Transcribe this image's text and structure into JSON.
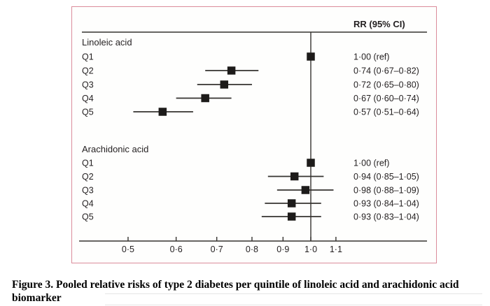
{
  "caption": "Figure 3. Pooled relative risks of type 2 diabetes per quintile of linoleic acid and arachidonic acid biomarker",
  "colors": {
    "frame": "#db8c9b",
    "ink": "#231f20"
  },
  "chart_data": {
    "type": "forest",
    "column_header": "RR (95% CI)",
    "x_axis": {
      "scale": "log",
      "ticks": [
        0.5,
        0.6,
        0.7,
        0.8,
        0.9,
        1.0,
        1.1
      ],
      "tick_labels": [
        "0·5",
        "0·6",
        "0·7",
        "0·8",
        "0·9",
        "1·0",
        "1·1"
      ],
      "reference_line": 1.0
    },
    "groups": [
      {
        "label": "Linoleic acid",
        "rows": [
          {
            "label": "Q1",
            "rr": 1.0,
            "lo": null,
            "hi": null,
            "text": "1·00 (ref)"
          },
          {
            "label": "Q2",
            "rr": 0.74,
            "lo": 0.67,
            "hi": 0.82,
            "text": "0·74 (0·67–0·82)"
          },
          {
            "label": "Q3",
            "rr": 0.72,
            "lo": 0.65,
            "hi": 0.8,
            "text": "0·72 (0·65–0·80)"
          },
          {
            "label": "Q4",
            "rr": 0.67,
            "lo": 0.6,
            "hi": 0.74,
            "text": "0·67 (0·60–0·74)"
          },
          {
            "label": "Q5",
            "rr": 0.57,
            "lo": 0.51,
            "hi": 0.64,
            "text": "0·57 (0·51–0·64)"
          }
        ]
      },
      {
        "label": "Arachidonic acid",
        "rows": [
          {
            "label": "Q1",
            "rr": 1.0,
            "lo": null,
            "hi": null,
            "text": "1·00 (ref)"
          },
          {
            "label": "Q2",
            "rr": 0.94,
            "lo": 0.85,
            "hi": 1.05,
            "text": "0·94 (0·85–1·05)"
          },
          {
            "label": "Q3",
            "rr": 0.98,
            "lo": 0.88,
            "hi": 1.09,
            "text": "0·98 (0·88–1·09)"
          },
          {
            "label": "Q4",
            "rr": 0.93,
            "lo": 0.84,
            "hi": 1.04,
            "text": "0·93 (0·84–1·04)"
          },
          {
            "label": "Q5",
            "rr": 0.93,
            "lo": 0.83,
            "hi": 1.04,
            "text": "0·93 (0·83–1·04)"
          }
        ]
      }
    ]
  }
}
